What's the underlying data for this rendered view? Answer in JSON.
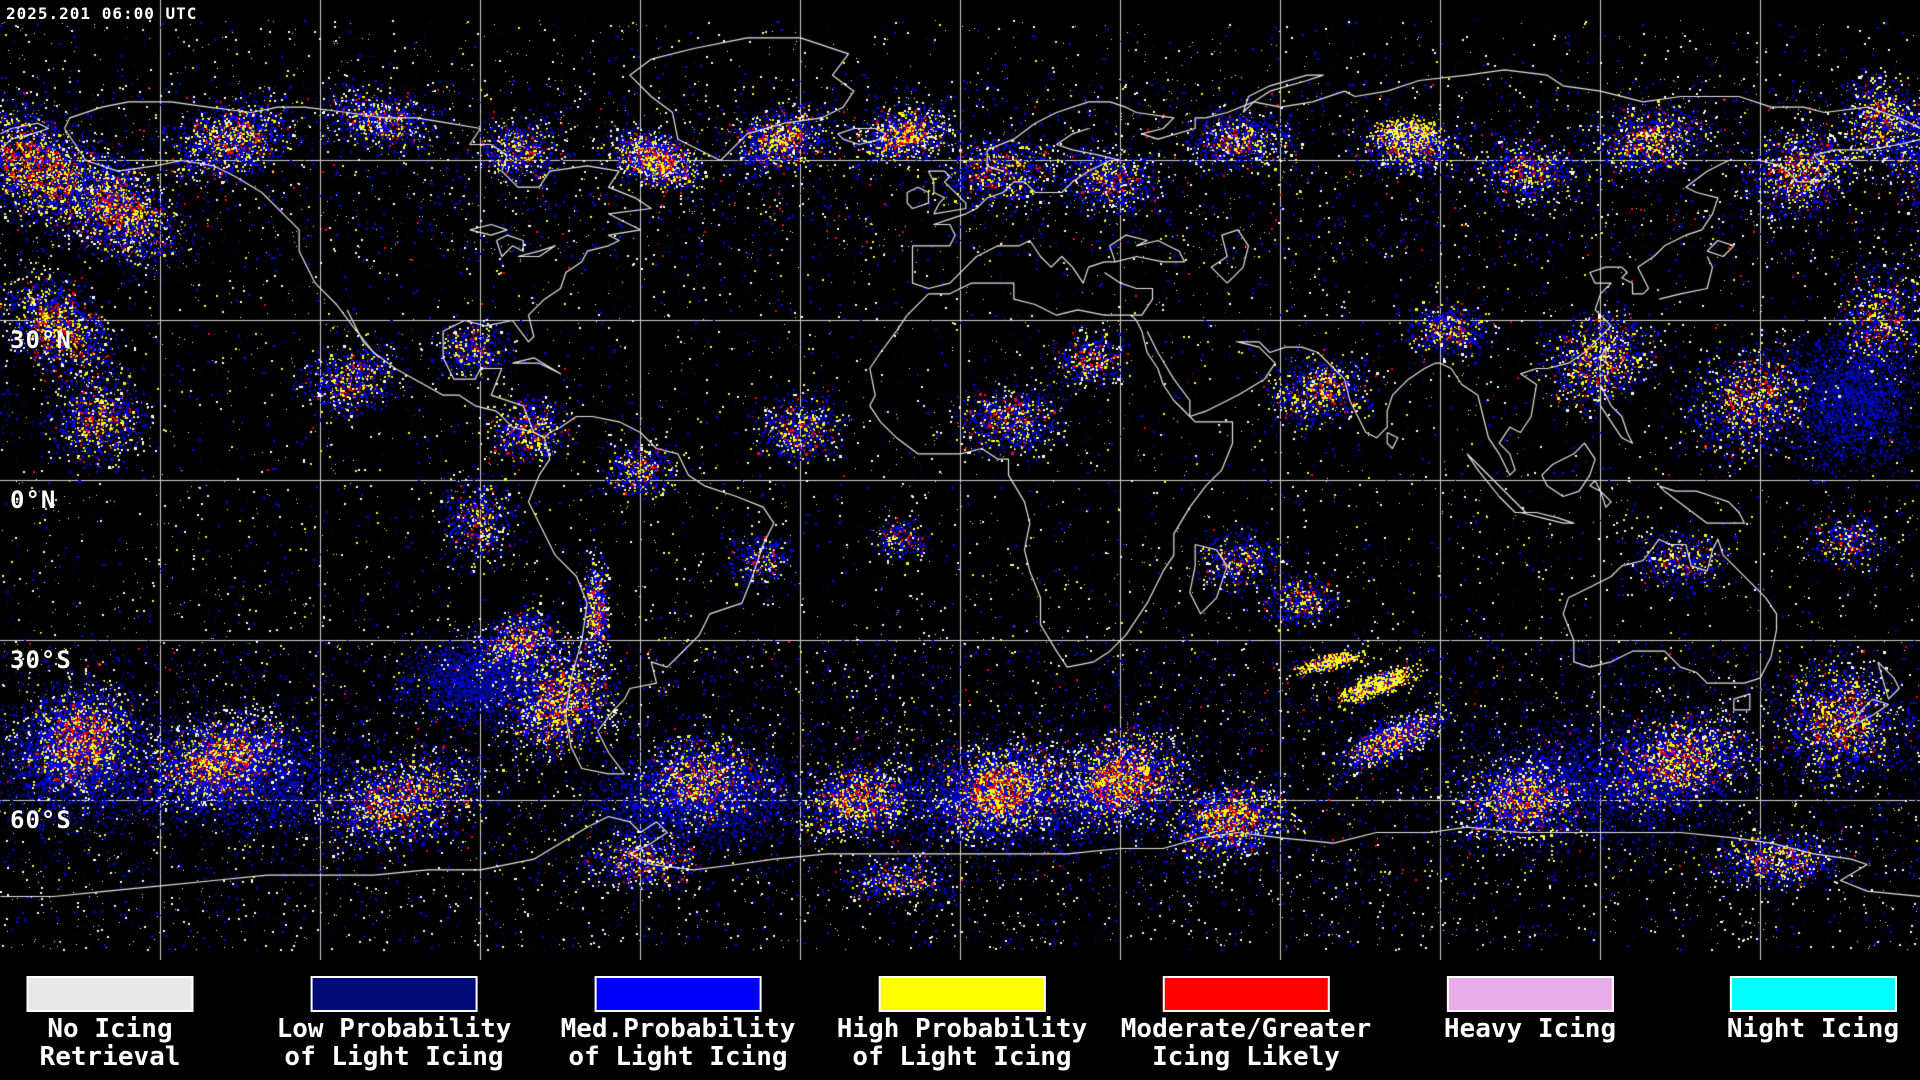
{
  "header": {
    "timestamp": "2025.201 06:00 UTC"
  },
  "map": {
    "lat_labels": [
      {
        "label": "30°N"
      },
      {
        "label": "0°N"
      },
      {
        "label": "30°S"
      },
      {
        "label": "60°S"
      }
    ],
    "grid_color": "#d0d0d0",
    "coastline_color": "#e6e6e6",
    "background_color": "#000000",
    "palette": {
      "no_retrieval_white": "#ffffff",
      "low_prob_navy": "#000a78",
      "med_prob_blue": "#0000ff",
      "high_prob_yellow": "#ffff00",
      "moderate_red": "#ff0000",
      "heavy_plum": "#e9aee9",
      "night_cyan": "#00ffff"
    }
  },
  "legend": {
    "items": [
      {
        "line1": "No Icing",
        "line2": "Retrieval",
        "color": "#e8e8e8"
      },
      {
        "line1": "Low Probability",
        "line2": "of Light Icing",
        "color": "#000a78"
      },
      {
        "line1": "Med.Probability",
        "line2": "of Light Icing",
        "color": "#0000ff"
      },
      {
        "line1": "High Probability",
        "line2": "of Light Icing",
        "color": "#ffff00"
      },
      {
        "line1": "Moderate/Greater",
        "line2": "Icing Likely",
        "color": "#ff0000"
      },
      {
        "line1": "Heavy Icing",
        "line2": "",
        "color": "#e9aee9"
      },
      {
        "line1": "Night Icing",
        "line2": "",
        "color": "#00ffff"
      }
    ]
  }
}
